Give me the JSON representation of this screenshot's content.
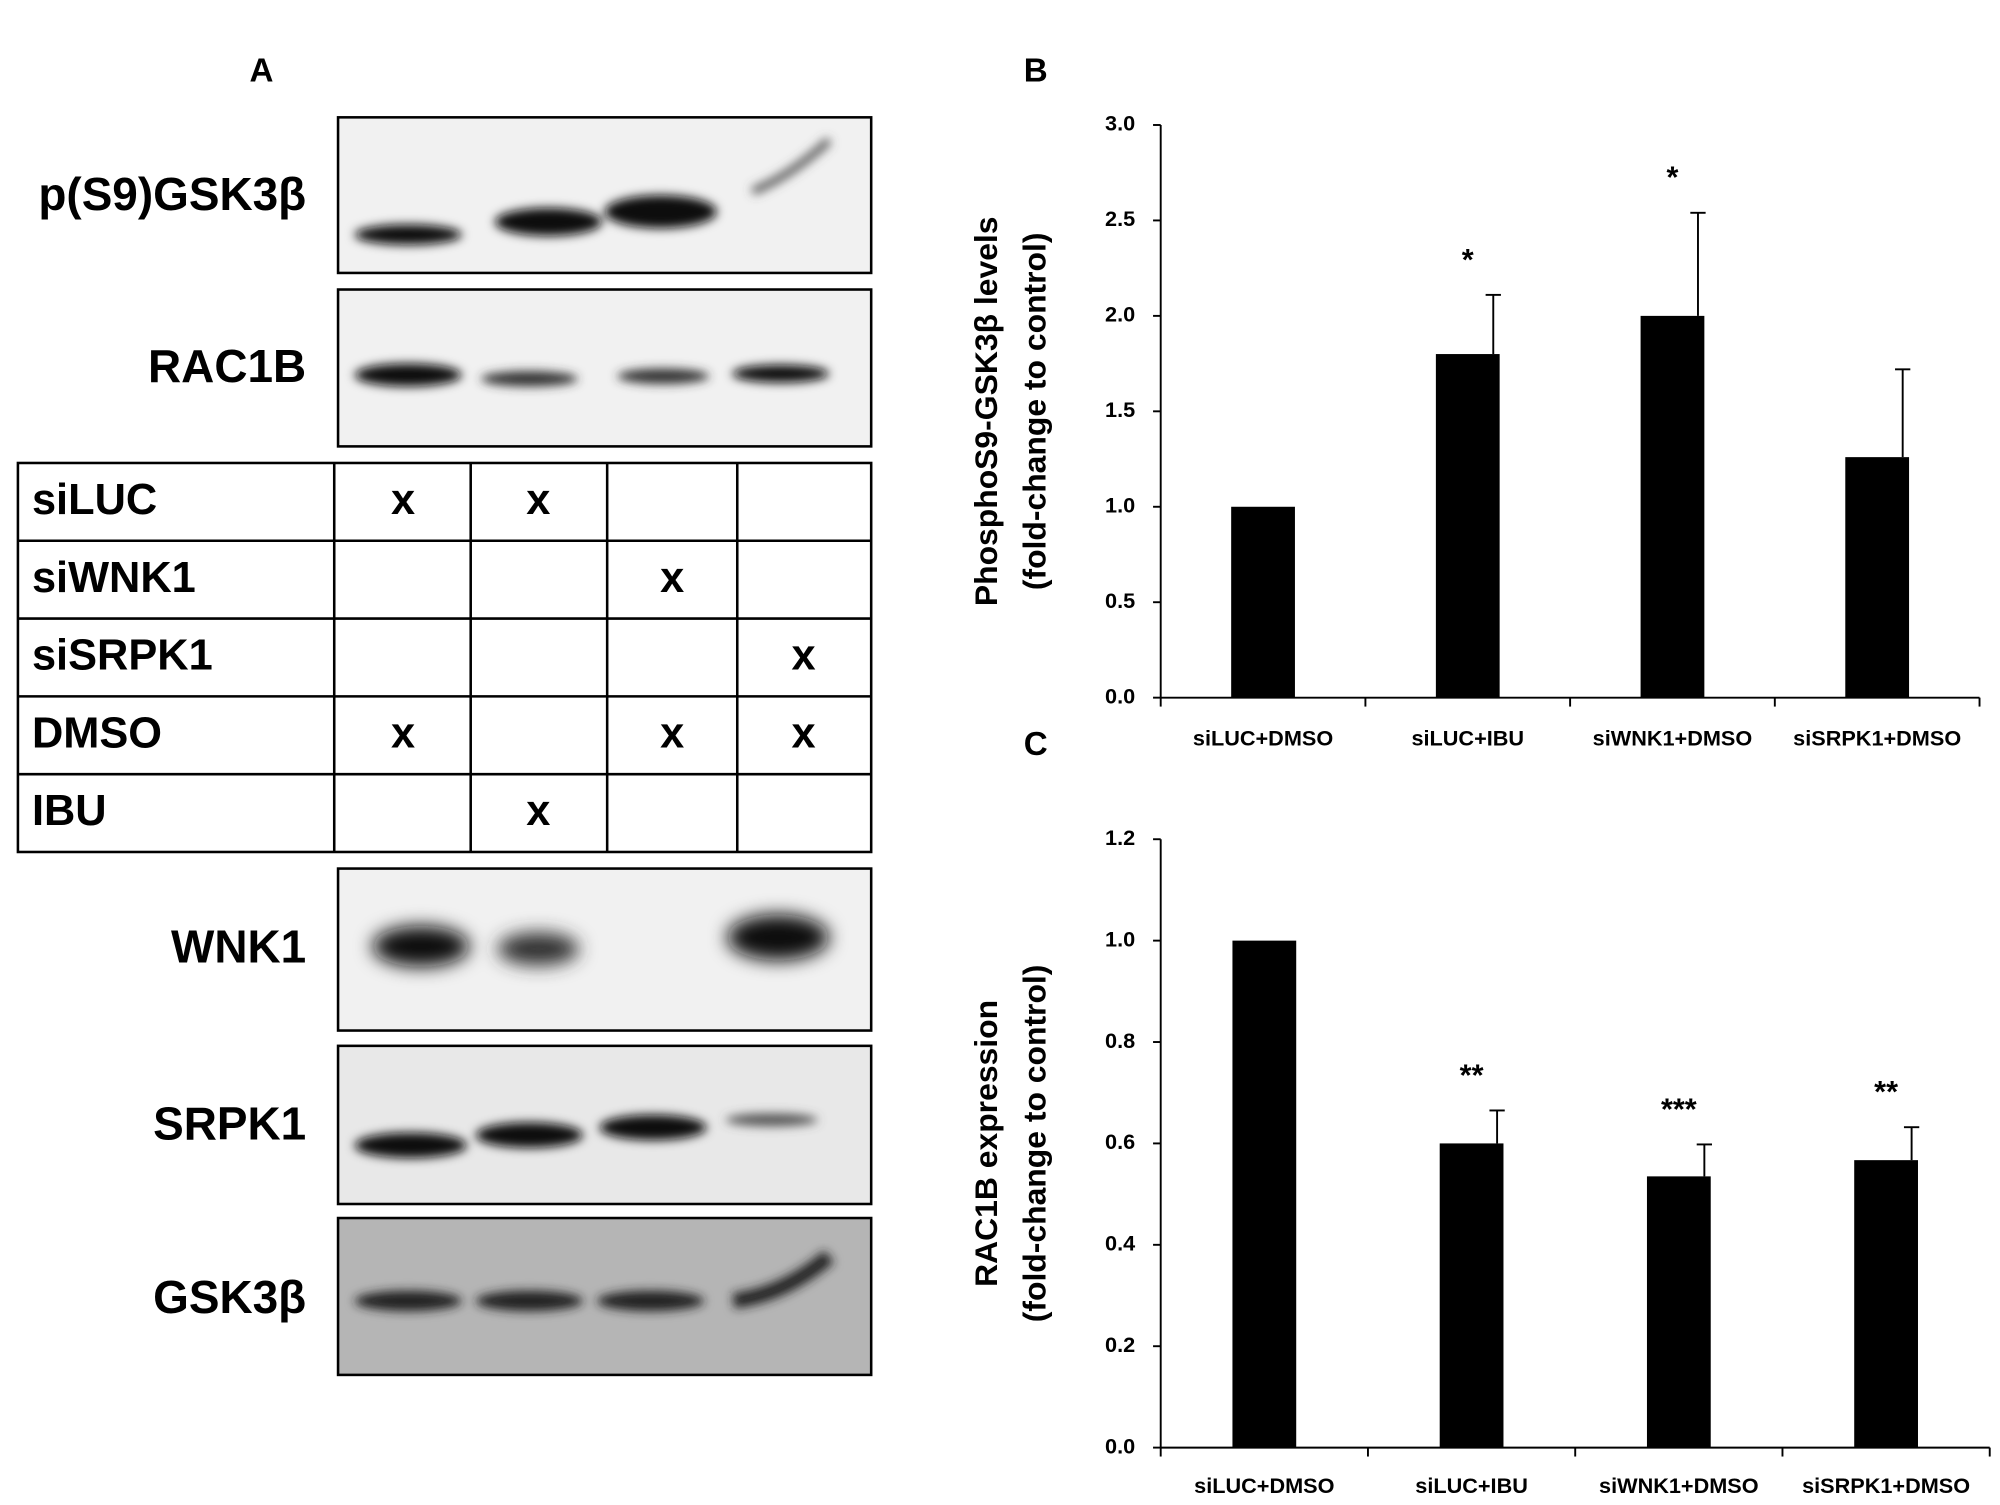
{
  "panel_a": {
    "label": "A",
    "blots": [
      {
        "label": "p(S9)GSK3β"
      },
      {
        "label": "RAC1B"
      },
      {
        "label": "WNK1"
      },
      {
        "label": "SRPK1"
      },
      {
        "label": "GSK3β"
      }
    ],
    "table": {
      "rows": [
        {
          "label": "siLUC",
          "cells": [
            "x",
            "x",
            null,
            null
          ]
        },
        {
          "label": "siWNK1",
          "cells": [
            null,
            null,
            "x",
            null
          ]
        },
        {
          "label": "siSRPK1",
          "cells": [
            null,
            null,
            null,
            "x"
          ]
        },
        {
          "label": "DMSO",
          "cells": [
            "x",
            null,
            "x",
            "x"
          ]
        },
        {
          "label": "IBU",
          "cells": [
            null,
            "x",
            null,
            null
          ]
        }
      ]
    }
  },
  "chart_data": [
    {
      "type": "bar",
      "panel": "B",
      "y_label": [
        "PhosphoS9-GSK3β levels",
        "(fold-change to control)"
      ],
      "categories": [
        "siLUC+DMSO",
        "siLUC+IBU",
        "siWNK1+DMSO",
        "siSRPK1+DMSO"
      ],
      "values": [
        1.0,
        1.8,
        2.0,
        1.26
      ],
      "errors": [
        0,
        0.31,
        0.54,
        0.46
      ],
      "annotations": [
        null,
        "*",
        "*",
        null
      ],
      "color": "#000000",
      "ylim": [
        0,
        3.0
      ],
      "yticks": [
        {
          "value": 0,
          "label": "0.0"
        },
        {
          "value": 0.5,
          "label": "0.5"
        },
        {
          "value": 1.0,
          "label": "1.0"
        },
        {
          "value": 1.5,
          "label": "1.5"
        },
        {
          "value": 2.0,
          "label": "2.0"
        },
        {
          "value": 2.5,
          "label": "2.5"
        },
        {
          "value": 3.0,
          "label": "3.0"
        }
      ]
    },
    {
      "type": "bar",
      "panel": "C",
      "y_label": [
        "RAC1B expression",
        "(fold-change to control)"
      ],
      "categories": [
        "siLUC+DMSO",
        "siLUC+IBU",
        "siWNK1+DMSO",
        "siSRPK1+DMSO"
      ],
      "values": [
        1.0,
        0.6,
        0.535,
        0.567
      ],
      "errors": [
        0,
        0.065,
        0.063,
        0.065
      ],
      "annotations": [
        null,
        "**",
        "***",
        "**"
      ],
      "color": "#000000",
      "ylim": [
        0,
        1.2
      ],
      "yticks": [
        {
          "value": 0,
          "label": "0.0"
        },
        {
          "value": 0.2,
          "label": "0.2"
        },
        {
          "value": 0.4,
          "label": "0.4"
        },
        {
          "value": 0.6,
          "label": "0.6"
        },
        {
          "value": 0.8,
          "label": "0.8"
        },
        {
          "value": 1.0,
          "label": "1.0"
        },
        {
          "value": 1.2,
          "label": "1.2"
        }
      ]
    }
  ]
}
